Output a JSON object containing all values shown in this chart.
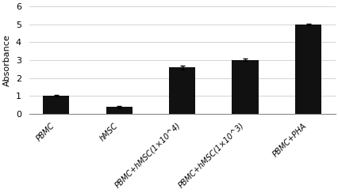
{
  "categories": [
    "PBMC",
    "hMSC",
    "PBMC+hMSC(1×10^4)",
    "PBMC+hMSC(1×10^3)",
    "PBMC+PHA"
  ],
  "values": [
    1.02,
    0.38,
    2.58,
    3.02,
    5.0
  ],
  "errors": [
    0.05,
    0.07,
    0.1,
    0.08,
    0.04
  ],
  "bar_color": "#111111",
  "ylabel": "Absorbance",
  "ylim": [
    0,
    6
  ],
  "yticks": [
    0,
    1,
    2,
    3,
    4,
    5,
    6
  ],
  "bar_width": 0.42,
  "background_color": "#ffffff",
  "tick_labels": [
    "PBMC",
    "hMSC",
    "PBMC+hMSC(1×10^4)",
    "PBMC+hMSC(1×10^3)",
    "PBMC+PHA"
  ],
  "grid_color": "#cccccc",
  "ylabel_fontsize": 8,
  "ytick_fontsize": 8,
  "xtick_fontsize": 7
}
